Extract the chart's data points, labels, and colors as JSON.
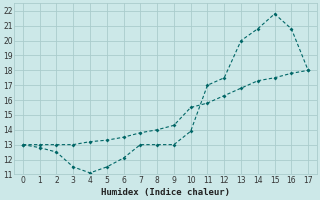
{
  "title": "",
  "xlabel": "Humidex (Indice chaleur)",
  "ylabel": "",
  "background_color": "#cce8e8",
  "grid_color": "#aacccc",
  "line_color": "#006666",
  "ylim": [
    11,
    22.5
  ],
  "xlim": [
    -0.5,
    17.5
  ],
  "yticks": [
    11,
    12,
    13,
    14,
    15,
    16,
    17,
    18,
    19,
    20,
    21,
    22
  ],
  "xticks": [
    0,
    1,
    2,
    3,
    4,
    5,
    6,
    7,
    8,
    9,
    10,
    11,
    12,
    13,
    14,
    15,
    16,
    17
  ],
  "series1_x": [
    0,
    1,
    2,
    3,
    4,
    5,
    6,
    7,
    8,
    9,
    10,
    11,
    12,
    13,
    14,
    15,
    16,
    17
  ],
  "series1_y": [
    13.0,
    12.8,
    12.5,
    11.5,
    11.1,
    11.5,
    12.1,
    13.0,
    13.0,
    13.0,
    13.9,
    17.0,
    17.5,
    20.0,
    20.8,
    21.8,
    20.8,
    18.0
  ],
  "series2_x": [
    0,
    1,
    2,
    3,
    4,
    5,
    6,
    7,
    8,
    9,
    10,
    11,
    12,
    13,
    14,
    15,
    16,
    17
  ],
  "series2_y": [
    13.0,
    13.0,
    13.0,
    13.0,
    13.2,
    13.3,
    13.5,
    13.8,
    14.0,
    14.3,
    15.5,
    15.8,
    16.3,
    16.8,
    17.3,
    17.5,
    17.8,
    18.0
  ]
}
